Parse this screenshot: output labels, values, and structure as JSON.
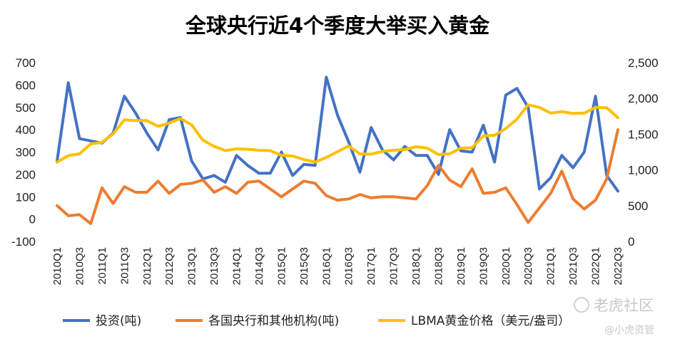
{
  "chart_data": {
    "type": "line",
    "title": "全球央行近4个季度大举买入黄金",
    "x": [
      "2010Q1",
      "2010Q2",
      "2010Q3",
      "2010Q4",
      "2011Q1",
      "2011Q2",
      "2011Q3",
      "2011Q4",
      "2012Q1",
      "2012Q2",
      "2012Q3",
      "2012Q4",
      "2013Q1",
      "2013Q2",
      "2013Q3",
      "2013Q4",
      "2014Q1",
      "2014Q2",
      "2014Q3",
      "2014Q4",
      "2015Q1",
      "2015Q2",
      "2015Q3",
      "2015Q4",
      "2016Q1",
      "2016Q2",
      "2016Q3",
      "2016Q4",
      "2017Q1",
      "2017Q2",
      "2017Q3",
      "2017Q4",
      "2018Q1",
      "2018Q2",
      "2018Q3",
      "2018Q4",
      "2019Q1",
      "2019Q2",
      "2019Q3",
      "2019Q4",
      "2020Q1",
      "2020Q2",
      "2020Q3",
      "2020Q4",
      "2021Q1",
      "2021Q2",
      "2021Q3",
      "2021Q4",
      "2022Q1",
      "2022Q2",
      "2022Q3"
    ],
    "x_tick_labels": [
      "2010Q1",
      "2010Q3",
      "2011Q1",
      "2011Q3",
      "2012Q1",
      "2012Q3",
      "2013Q1",
      "2013Q3",
      "2014Q1",
      "2014Q3",
      "2015Q1",
      "2015Q3",
      "2016Q1",
      "2016Q3",
      "2017Q1",
      "2017Q3",
      "2018Q1",
      "2018Q3",
      "2019Q1",
      "2019Q3",
      "2020Q1",
      "2020Q3",
      "2021Q1",
      "2021Q3",
      "2022Q1",
      "2022Q3"
    ],
    "y_left": {
      "min": -100,
      "max": 700,
      "step": 100,
      "tick_labels": [
        "-100",
        "0",
        "100",
        "200",
        "300",
        "400",
        "500",
        "600",
        "700"
      ]
    },
    "y_right": {
      "min": 0,
      "max": 2500,
      "step": 500,
      "tick_labels": [
        "0",
        "500",
        "1,000",
        "1,500",
        "2,000",
        "2,500"
      ]
    },
    "series": [
      {
        "name": "投资(吨)",
        "axis": "left",
        "color": "#4472C4",
        "values": [
          260,
          610,
          360,
          350,
          340,
          385,
          550,
          475,
          385,
          310,
          445,
          455,
          260,
          180,
          195,
          165,
          285,
          240,
          205,
          205,
          300,
          195,
          245,
          240,
          635,
          465,
          345,
          210,
          410,
          310,
          265,
          325,
          285,
          285,
          200,
          400,
          305,
          300,
          420,
          255,
          555,
          585,
          500,
          135,
          185,
          285,
          230,
          300,
          550,
          195,
          125
        ]
      },
      {
        "name": "各国央行和其他机构(吨)",
        "axis": "left",
        "color": "#ED7D31",
        "values": [
          60,
          15,
          20,
          -20,
          140,
          70,
          145,
          120,
          120,
          170,
          115,
          155,
          160,
          175,
          120,
          145,
          115,
          165,
          170,
          135,
          100,
          135,
          170,
          160,
          105,
          85,
          90,
          110,
          95,
          100,
          100,
          95,
          90,
          150,
          240,
          175,
          145,
          225,
          115,
          120,
          140,
          65,
          -15,
          50,
          115,
          215,
          90,
          45,
          85,
          180,
          400
        ]
      },
      {
        "name": "LBMA黄金价格（美元/盎司）",
        "axis": "right",
        "color": "#FFC000",
        "values": [
          1110,
          1200,
          1225,
          1365,
          1385,
          1505,
          1700,
          1690,
          1690,
          1610,
          1655,
          1720,
          1630,
          1415,
          1330,
          1270,
          1295,
          1290,
          1275,
          1270,
          1205,
          1195,
          1145,
          1110,
          1175,
          1255,
          1335,
          1225,
          1220,
          1260,
          1275,
          1285,
          1325,
          1305,
          1215,
          1225,
          1305,
          1310,
          1475,
          1485,
          1580,
          1710,
          1910,
          1875,
          1795,
          1815,
          1790,
          1795,
          1875,
          1870,
          1730
        ]
      }
    ],
    "legend": [
      "投资(吨)",
      "各国央行和其他机构(吨)",
      "LBMA黄金价格（美元/盎司）"
    ],
    "legend_position": "bottom",
    "grid": false
  },
  "watermark": {
    "brand": "老虎社区",
    "handle": "@小虎资管"
  }
}
